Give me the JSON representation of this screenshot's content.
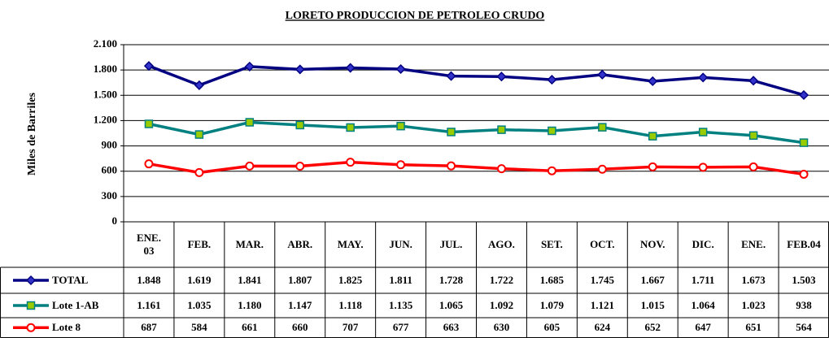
{
  "chart_data": {
    "type": "line",
    "title": "LORETO PRODUCCION DE PETROLEO CRUDO",
    "y_label": "Miles de Barriles",
    "categories": [
      "ENE. 03",
      "FEB.",
      "MAR.",
      "ABR.",
      "MAY.",
      "JUN.",
      "JUL.",
      "AGO.",
      "SET.",
      "OCT.",
      "NOV.",
      "DIC.",
      "ENE.",
      "FEB.04"
    ],
    "series": [
      {
        "name": "TOTAL",
        "color": "#000080",
        "marker": "diamond",
        "marker_color": "#3333cc",
        "values": [
          1848,
          1619,
          1841,
          1807,
          1825,
          1811,
          1728,
          1722,
          1685,
          1745,
          1667,
          1711,
          1673,
          1503
        ],
        "value_labels": [
          "1.848",
          "1.619",
          "1.841",
          "1.807",
          "1.825",
          "1.811",
          "1.728",
          "1.722",
          "1.685",
          "1.745",
          "1.667",
          "1.711",
          "1.673",
          "1.503"
        ]
      },
      {
        "name": "Lote 1-AB",
        "color": "#008080",
        "marker": "square",
        "marker_color": "#99cc00",
        "values": [
          1161,
          1035,
          1180,
          1147,
          1118,
          1135,
          1065,
          1092,
          1079,
          1121,
          1015,
          1064,
          1023,
          938
        ],
        "value_labels": [
          "1.161",
          "1.035",
          "1.180",
          "1.147",
          "1.118",
          "1.135",
          "1.065",
          "1.092",
          "1.079",
          "1.121",
          "1.015",
          "1.064",
          "1.023",
          "938"
        ]
      },
      {
        "name": "Lote 8",
        "color": "#ff0000",
        "marker": "circle",
        "marker_color": "#ffffff",
        "values": [
          687,
          584,
          661,
          660,
          707,
          677,
          663,
          630,
          605,
          624,
          652,
          647,
          651,
          564
        ],
        "value_labels": [
          "687",
          "584",
          "661",
          "660",
          "707",
          "677",
          "663",
          "630",
          "605",
          "624",
          "652",
          "647",
          "651",
          "564"
        ]
      }
    ],
    "ylim": [
      0,
      2100
    ],
    "yticks": [
      0,
      300,
      600,
      900,
      {
        "value": 1200,
        "label": "1.200"
      },
      {
        "value": 1500,
        "label": "1.500"
      },
      {
        "value": 1800,
        "label": "1.800"
      },
      {
        "value": 2100,
        "label": "2.100"
      }
    ],
    "grid": true
  }
}
